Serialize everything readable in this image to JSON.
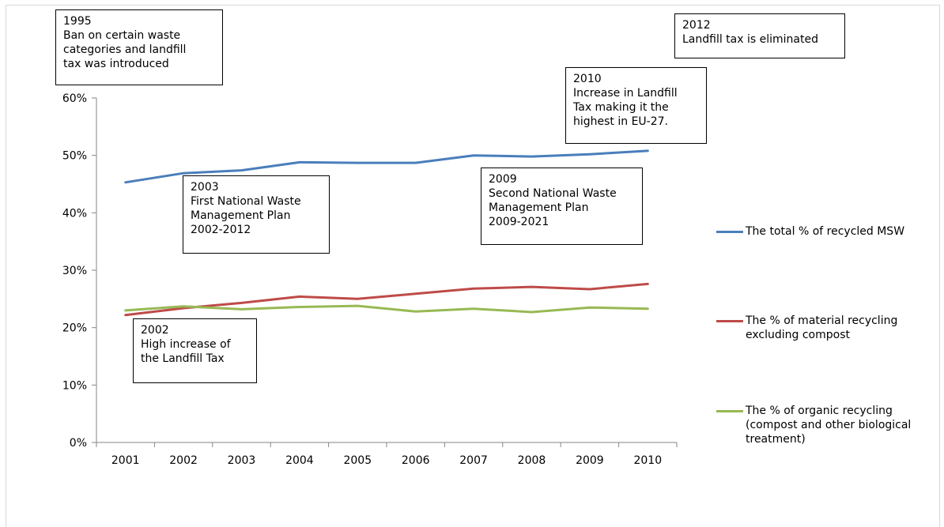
{
  "chart_data": {
    "type": "line",
    "categories": [
      "2001",
      "2002",
      "2003",
      "2004",
      "2005",
      "2006",
      "2007",
      "2008",
      "2009",
      "2010"
    ],
    "y_ticks": [
      "0%",
      "10%",
      "20%",
      "30%",
      "40%",
      "50%",
      "60%"
    ],
    "ylim": [
      0,
      60
    ],
    "grid": false,
    "legend_position": "right",
    "series": [
      {
        "name": "The total % of recycled MSW",
        "color": "#4a7ebb",
        "values": [
          45.3,
          46.9,
          47.4,
          48.8,
          48.7,
          48.7,
          50.0,
          49.8,
          50.2,
          50.8
        ]
      },
      {
        "name": "The % of material recycling\nexcluding compost",
        "color": "#be4b48",
        "values": [
          22.2,
          23.4,
          24.3,
          25.4,
          25.0,
          25.9,
          26.8,
          27.1,
          26.7,
          27.6
        ]
      },
      {
        "name": "The % of organic recycling\n(compost and other biological\ntreatment)",
        "color": "#98b954",
        "values": [
          23.0,
          23.7,
          23.2,
          23.6,
          23.8,
          22.8,
          23.3,
          22.7,
          23.5,
          23.3
        ]
      }
    ],
    "annotations": [
      {
        "id": "1995",
        "text": "1995\nBan on certain waste\ncategories and landfill\ntax was introduced"
      },
      {
        "id": "2012",
        "text": "2012\nLandfill tax is eliminated"
      },
      {
        "id": "2010",
        "text": "2010\nIncrease in Landfill\nTax making it the\nhighest in EU-27."
      },
      {
        "id": "2003",
        "text": "2003\nFirst National Waste\nManagement Plan\n2002-2012"
      },
      {
        "id": "2009",
        "text": "2009\nSecond National Waste\nManagement Plan\n2009-2021"
      },
      {
        "id": "2002",
        "text": "2002\nHigh increase of\nthe Landfill Tax"
      }
    ]
  }
}
